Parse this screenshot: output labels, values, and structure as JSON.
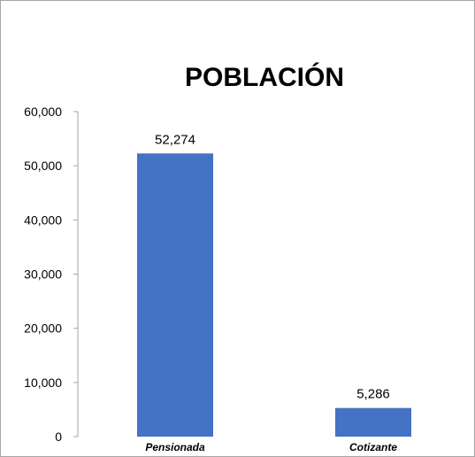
{
  "chart_data": {
    "type": "bar",
    "title": "POBLACIÓN",
    "categories": [
      "Pensionada",
      "Cotizante"
    ],
    "values": [
      52274,
      5286
    ],
    "value_labels": [
      "52,274",
      "5,286"
    ],
    "y_ticks": [
      "0",
      "10,000",
      "20,000",
      "30,000",
      "40,000",
      "50,000",
      "60,000"
    ],
    "ylim": [
      0,
      60000
    ],
    "xlabel": "",
    "ylabel": "",
    "grid": false,
    "legend": "none",
    "bar_color": "#4472C4",
    "frame_color": "#A6A6A6"
  }
}
